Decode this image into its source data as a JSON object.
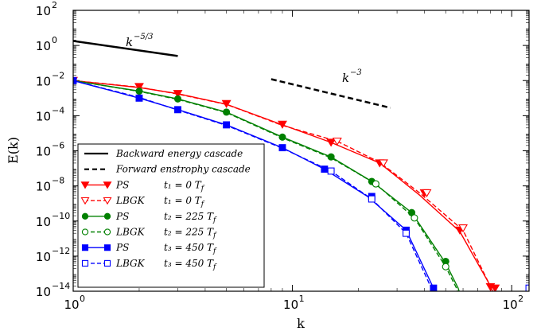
{
  "chart_data": {
    "type": "line",
    "xlabel": "k",
    "ylabel": "E(k)",
    "xscale": "log",
    "yscale": "log",
    "xlim": [
      1,
      120
    ],
    "ylim": [
      1e-14,
      100
    ],
    "x_ticks": [
      {
        "value": 1,
        "base": "10",
        "exp": "0"
      },
      {
        "value": 10,
        "base": "10",
        "exp": "1"
      },
      {
        "value": 100,
        "base": "10",
        "exp": "2"
      }
    ],
    "y_ticks": [
      {
        "value": 100,
        "base": "10",
        "exp": "2"
      },
      {
        "value": 1,
        "base": "10",
        "exp": "0"
      },
      {
        "value": 0.01,
        "base": "10",
        "exp": "-2"
      },
      {
        "value": 0.0001,
        "base": "10",
        "exp": "-4"
      },
      {
        "value": 1e-06,
        "base": "10",
        "exp": "-6"
      },
      {
        "value": 1e-08,
        "base": "10",
        "exp": "-8"
      },
      {
        "value": 1e-10,
        "base": "10",
        "exp": "-10"
      },
      {
        "value": 1e-12,
        "base": "10",
        "exp": "-12"
      },
      {
        "value": 1e-14,
        "base": "10",
        "exp": "-14"
      }
    ],
    "legend_position": "lower-left",
    "reference_lines": [
      {
        "name": "Backward energy cascade",
        "slope_label_base": "k",
        "slope_label_exp": "−5/3",
        "style": "solid",
        "color": "#000000",
        "points": [
          [
            1,
            1.8
          ],
          [
            3,
            0.25
          ]
        ]
      },
      {
        "name": "Forward enstrophy cascade",
        "slope_label_base": "k",
        "slope_label_exp": "−3",
        "style": "dashed",
        "color": "#000000",
        "points": [
          [
            8,
            0.012
          ],
          [
            28,
            0.00028
          ]
        ]
      }
    ],
    "series": [
      {
        "name": "PS",
        "time_label": "t₁ = 0 T",
        "time_sub": "f",
        "color": "#ff0000",
        "marker": "triangle-down",
        "filled": true,
        "style": "solid",
        "points": [
          [
            1,
            0.01
          ],
          [
            2,
            0.004
          ],
          [
            3,
            0.0018
          ],
          [
            5,
            0.00045
          ],
          [
            9,
            3e-05
          ],
          [
            15,
            3e-06
          ],
          [
            25,
            2e-07
          ],
          [
            38,
            3e-09
          ],
          [
            58,
            2.5e-11
          ],
          [
            80,
            2e-14
          ],
          [
            85,
            3e-15
          ]
        ],
        "markers": [
          [
            1,
            0.01
          ],
          [
            2,
            0.0045
          ],
          [
            3,
            0.0018
          ],
          [
            5,
            0.00048
          ],
          [
            9,
            3.2e-05
          ],
          [
            15,
            3e-06
          ],
          [
            25,
            2e-07
          ],
          [
            40,
            4e-09
          ],
          [
            58,
            3e-11
          ],
          [
            80,
            1.8e-14
          ],
          [
            84,
            1.5e-14
          ]
        ]
      },
      {
        "name": "LBGK",
        "time_label": "t₁ = 0 T",
        "time_sub": "f",
        "color": "#ff0000",
        "marker": "triangle-down",
        "filled": false,
        "style": "dashed",
        "points": [
          [
            1,
            0.01
          ],
          [
            2,
            0.0042
          ],
          [
            3,
            0.0017
          ],
          [
            5,
            0.00044
          ],
          [
            9,
            2.8e-05
          ],
          [
            16,
            3.5e-06
          ],
          [
            25,
            2.2e-07
          ],
          [
            38,
            4e-09
          ],
          [
            60,
            3e-11
          ],
          [
            82,
            1e-14
          ],
          [
            85,
            3e-15
          ]
        ],
        "markers": [
          [
            16,
            3.5e-06
          ],
          [
            26,
            2e-07
          ],
          [
            41,
            4e-09
          ],
          [
            60,
            4e-11
          ]
        ]
      },
      {
        "name": "PS",
        "time_label": "t₂ = 225 T",
        "time_sub": "f",
        "color": "#008000",
        "marker": "circle",
        "filled": true,
        "style": "solid",
        "points": [
          [
            1,
            0.01
          ],
          [
            2,
            0.0025
          ],
          [
            3,
            0.0009
          ],
          [
            5,
            0.00016
          ],
          [
            9,
            6e-06
          ],
          [
            15,
            4.5e-07
          ],
          [
            23,
            1.8e-08
          ],
          [
            35,
            3e-10
          ],
          [
            50,
            4e-13
          ],
          [
            57,
            1.5e-14
          ],
          [
            60,
            2e-15
          ]
        ],
        "markers": [
          [
            2,
            0.0025
          ],
          [
            3,
            0.0009
          ],
          [
            5,
            0.00016
          ],
          [
            9,
            6e-06
          ],
          [
            15,
            4.5e-07
          ],
          [
            23,
            1.8e-08
          ],
          [
            35,
            3e-10
          ],
          [
            50,
            5e-13
          ]
        ]
      },
      {
        "name": "LBGK",
        "time_label": "t₂ = 225 T",
        "time_sub": "f",
        "color": "#008000",
        "marker": "circle",
        "filled": false,
        "style": "dashed",
        "points": [
          [
            1,
            0.01
          ],
          [
            2,
            0.0024
          ],
          [
            3,
            0.00085
          ],
          [
            5,
            0.00015
          ],
          [
            9,
            5.5e-06
          ],
          [
            15,
            4e-07
          ],
          [
            24,
            1.3e-08
          ],
          [
            36,
            1.5e-10
          ],
          [
            50,
            2.5e-13
          ],
          [
            56,
            1.5e-14
          ],
          [
            59,
            2e-15
          ]
        ],
        "markers": [
          [
            24,
            1.3e-08
          ],
          [
            36,
            1.5e-10
          ],
          [
            50,
            2.5e-13
          ]
        ]
      },
      {
        "name": "PS",
        "time_label": "t₃ = 450 T",
        "time_sub": "f",
        "color": "#0000ff",
        "marker": "square",
        "filled": true,
        "style": "solid",
        "points": [
          [
            1,
            0.01
          ],
          [
            2,
            0.001
          ],
          [
            3,
            0.00022
          ],
          [
            5,
            3e-05
          ],
          [
            9,
            1.5e-06
          ],
          [
            14,
            9e-08
          ],
          [
            22,
            2.5e-09
          ],
          [
            33,
            3e-11
          ],
          [
            44,
            1.5e-14
          ],
          [
            46,
            3e-15
          ]
        ],
        "markers": [
          [
            1,
            0.01
          ],
          [
            2,
            0.001
          ],
          [
            3,
            0.00022
          ],
          [
            5,
            3e-05
          ],
          [
            9,
            1.5e-06
          ],
          [
            14,
            9e-08
          ],
          [
            23,
            2.5e-09
          ],
          [
            33,
            3e-11
          ],
          [
            44,
            1.5e-14
          ]
        ]
      },
      {
        "name": "LBGK",
        "time_label": "t₃ = 450 T",
        "time_sub": "f",
        "color": "#0000ff",
        "marker": "square",
        "filled": false,
        "style": "dashed",
        "points": [
          [
            1,
            0.01
          ],
          [
            2,
            0.0011
          ],
          [
            3,
            0.00021
          ],
          [
            5,
            2.8e-05
          ],
          [
            9,
            1.4e-06
          ],
          [
            15,
            7e-08
          ],
          [
            23,
            1.8e-09
          ],
          [
            33,
            2e-11
          ],
          [
            43,
            1.5e-14
          ],
          [
            45,
            3e-15
          ]
        ],
        "markers": [
          [
            15,
            7e-08
          ],
          [
            23,
            1.8e-09
          ],
          [
            33,
            2e-11
          ],
          [
            120,
            1.5e-14
          ]
        ]
      }
    ]
  }
}
